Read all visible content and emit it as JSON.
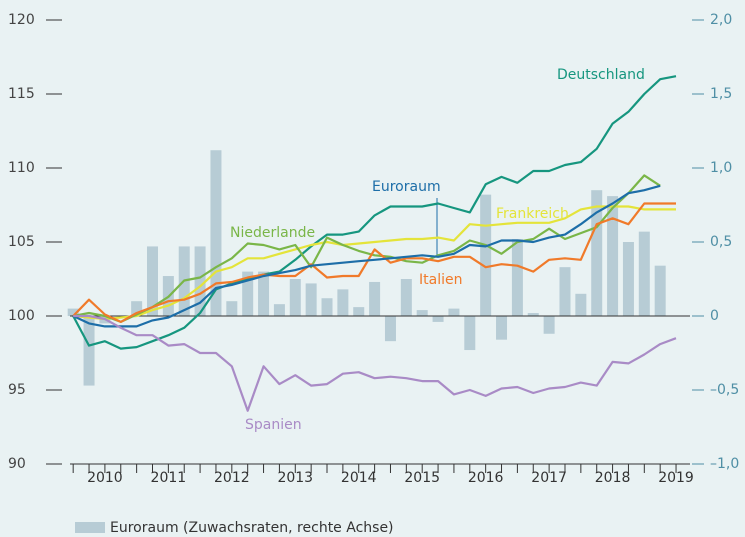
{
  "chart_data": {
    "type": "line",
    "x": [
      2009.5,
      2009.75,
      2010,
      2010.25,
      2010.5,
      2010.75,
      2011,
      2011.25,
      2011.5,
      2011.75,
      2012,
      2012.25,
      2012.5,
      2012.75,
      2013,
      2013.25,
      2013.5,
      2013.75,
      2014,
      2014.25,
      2014.5,
      2014.75,
      2015,
      2015.25,
      2015.5,
      2015.75,
      2016,
      2016.25,
      2016.5,
      2016.75,
      2017,
      2017.25,
      2017.5,
      2017.75,
      2018,
      2018.25,
      2018.5,
      2018.75,
      2019
    ],
    "xlim": [
      2009.45,
      2019.22
    ],
    "xticks": [
      2010,
      2011,
      2012,
      2013,
      2014,
      2015,
      2016,
      2017,
      2018,
      2019
    ],
    "ylim": [
      90,
      120
    ],
    "yticks": [
      90,
      95,
      100,
      105,
      110,
      115,
      120
    ],
    "y2lim": [
      -1.0,
      2.0
    ],
    "y2ticks": [
      {
        "value": -1.0,
        "label": "–1,0"
      },
      {
        "value": -0.5,
        "label": "–0,5"
      },
      0,
      {
        "value": 0.5,
        "label": "0,5"
      },
      {
        "value": 1.0,
        "label": "1,0"
      },
      {
        "value": 1.5,
        "label": "1,5"
      },
      {
        "value": 2.0,
        "label": "2,0"
      }
    ],
    "series": [
      {
        "name": "Euroraum (Zuwachsraten, rechte Achse)",
        "type": "bar",
        "axis": "y2",
        "color": "#b7ccd5",
        "values": [
          0.05,
          -0.47,
          -0.05,
          0.0,
          0.1,
          0.47,
          0.27,
          0.47,
          0.47,
          1.12,
          0.1,
          0.3,
          0.3,
          0.08,
          0.25,
          0.22,
          0.12,
          0.18,
          0.06,
          0.23,
          -0.17,
          0.25,
          0.04,
          -0.04,
          0.05,
          -0.23,
          0.82,
          -0.16,
          0.52,
          0.02,
          -0.12,
          0.33,
          0.15,
          0.85,
          0.81,
          0.5,
          0.57,
          0.34,
          null
        ]
      },
      {
        "name": "Deutschland",
        "type": "line",
        "color": "#16967f",
        "values": [
          100,
          98,
          98.3,
          97.8,
          97.9,
          98.3,
          98.7,
          99.2,
          100.2,
          101.8,
          102.2,
          102.5,
          102.8,
          103,
          103.8,
          104.7,
          105.5,
          105.5,
          105.7,
          106.8,
          107.4,
          107.4,
          107.4,
          107.6,
          107.3,
          107.0,
          108.9,
          109.4,
          109,
          109.8,
          109.8,
          110.2,
          110.4,
          111.3,
          113,
          113.8,
          115,
          116,
          116.2
        ]
      },
      {
        "name": "Frankreich",
        "type": "line",
        "color": "#e4e43a",
        "values": [
          100,
          99.9,
          99.8,
          99.9,
          100,
          100.4,
          100.7,
          101.2,
          102,
          103,
          103.3,
          103.9,
          103.9,
          104.2,
          104.5,
          104.8,
          105,
          104.8,
          104.9,
          105,
          105.1,
          105.2,
          105.2,
          105.3,
          105.1,
          106.2,
          106.1,
          106.2,
          106.3,
          106.3,
          106.3,
          106.6,
          107.2,
          107.4,
          107.4,
          107.4,
          107.2,
          107.2,
          107.2
        ]
      },
      {
        "name": "Niederlande",
        "type": "line",
        "color": "#7ab648",
        "values": [
          100,
          100.2,
          100,
          99.6,
          100.1,
          100.6,
          101.3,
          102.4,
          102.6,
          103.3,
          103.9,
          104.9,
          104.8,
          104.5,
          104.8,
          103.3,
          105.3,
          104.8,
          104.4,
          104.1,
          104,
          103.7,
          103.6,
          104.1,
          104.4,
          105.1,
          104.8,
          104.2,
          105,
          105.2,
          105.9,
          105.2,
          105.6,
          106,
          107.3,
          108.3,
          109.5,
          108.8,
          null
        ]
      },
      {
        "name": "Italien",
        "type": "line",
        "color": "#f07a2a",
        "values": [
          100,
          101.1,
          100.1,
          99.6,
          100.2,
          100.6,
          101,
          101.1,
          101.5,
          102.2,
          102.3,
          102.6,
          102.8,
          102.7,
          102.7,
          103.5,
          102.6,
          102.7,
          102.7,
          104.5,
          103.6,
          103.9,
          103.9,
          103.7,
          104,
          104,
          103.3,
          103.5,
          103.4,
          103,
          103.8,
          103.9,
          103.8,
          106.2,
          106.6,
          106.2,
          107.6,
          107.6,
          107.6
        ]
      },
      {
        "name": "Euroraum",
        "type": "line",
        "color": "#1d6ea8",
        "values": [
          100,
          99.5,
          99.3,
          99.3,
          99.3,
          99.7,
          99.9,
          100.4,
          100.9,
          101.9,
          102.1,
          102.4,
          102.7,
          102.9,
          103.1,
          103.4,
          103.5,
          103.6,
          103.7,
          103.8,
          103.9,
          104,
          104.1,
          104,
          104.2,
          104.8,
          104.7,
          105.1,
          105.1,
          105,
          105.3,
          105.5,
          106.2,
          107,
          107.6,
          108.3,
          108.5,
          108.8,
          null
        ]
      },
      {
        "name": "Spanien",
        "type": "line",
        "color": "#a98bc6",
        "values": [
          100,
          100,
          99.8,
          99.2,
          98.7,
          98.7,
          98,
          98.1,
          97.5,
          97.5,
          96.6,
          93.6,
          96.6,
          95.4,
          96,
          95.3,
          95.4,
          96.1,
          96.2,
          95.8,
          95.9,
          95.8,
          95.6,
          95.6,
          94.7,
          95,
          94.6,
          95.1,
          95.2,
          94.8,
          95.1,
          95.2,
          95.5,
          95.3,
          96.9,
          96.8,
          97.4,
          98.1,
          98.5
        ]
      }
    ]
  }
}
